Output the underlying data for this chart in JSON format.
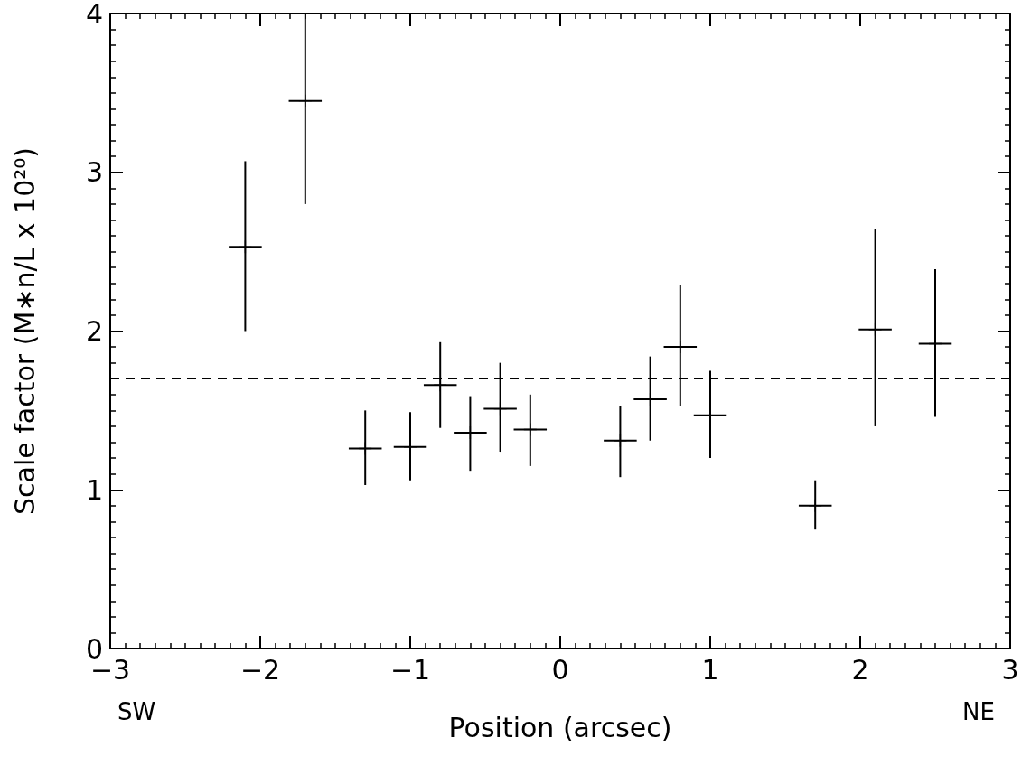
{
  "chart_data": {
    "type": "scatter",
    "xlabel": "Position (arcsec)",
    "ylabel": "Scale factor (M∗n/L x 10²⁰)",
    "x": [
      -2.1,
      -1.7,
      -1.3,
      -1.0,
      -0.8,
      -0.6,
      -0.4,
      -0.2,
      0.4,
      0.6,
      0.8,
      1.0,
      1.7,
      2.1,
      2.5
    ],
    "values": [
      2.53,
      3.45,
      1.26,
      1.27,
      1.66,
      1.36,
      1.51,
      1.38,
      1.31,
      1.57,
      1.9,
      1.47,
      0.9,
      2.01,
      1.92
    ],
    "errors": [
      [
        2.0,
        3.07
      ],
      [
        2.8,
        4.0
      ],
      [
        1.03,
        1.5
      ],
      [
        1.06,
        1.49
      ],
      [
        1.39,
        1.93
      ],
      [
        1.12,
        1.59
      ],
      [
        1.24,
        1.8
      ],
      [
        1.15,
        1.6
      ],
      [
        1.08,
        1.53
      ],
      [
        1.31,
        1.84
      ],
      [
        1.53,
        2.29
      ],
      [
        1.2,
        1.75
      ],
      [
        0.75,
        1.06
      ],
      [
        1.4,
        2.64
      ],
      [
        1.46,
        2.39
      ]
    ],
    "xerrors": [
      0.11,
      0.11,
      0.11,
      0.11,
      0.11,
      0.11,
      0.11,
      0.11,
      0.11,
      0.11,
      0.11,
      0.11,
      0.11,
      0.11,
      0.11
    ],
    "color": "#000000",
    "marker": "cross",
    "xlim": [
      -3,
      3
    ],
    "xticks": [
      -3,
      -2,
      -1,
      0,
      1,
      2,
      3
    ],
    "ylim": [
      0,
      4
    ],
    "yticks": [
      0,
      1,
      2,
      3,
      4
    ],
    "ref_lines": [
      {
        "axis": "y",
        "value": 1.7,
        "line_style": "dashed",
        "color": "#000000"
      }
    ],
    "annotations": [
      "SW",
      "NE"
    ],
    "grid": false
  }
}
